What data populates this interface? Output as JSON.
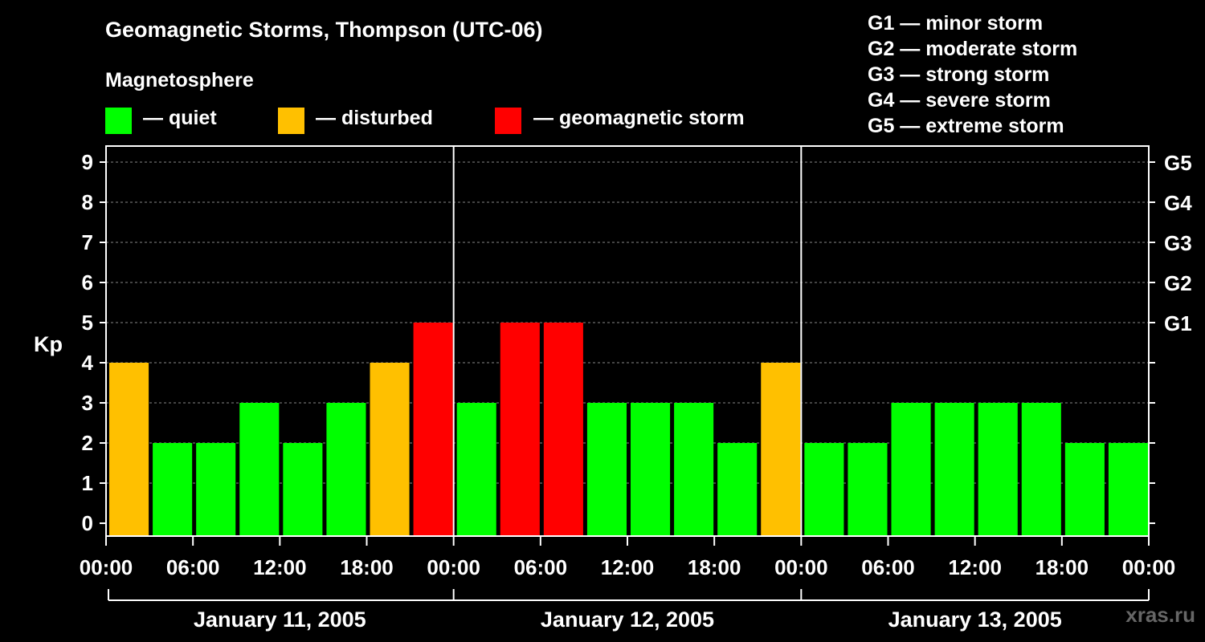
{
  "colors": {
    "quiet": "#00ff00",
    "disturbed": "#ffc000",
    "storm": "#ff0000"
  },
  "legend": [
    {
      "label": "— quiet",
      "color": "#00ff00"
    },
    {
      "label": "— disturbed",
      "color": "#ffc000"
    },
    {
      "label": "— geomagnetic storm",
      "color": "#ff0000"
    }
  ],
  "g_scale": [
    "G1 — minor storm",
    "G2 — moderate storm",
    "G3 — strong storm",
    "G4 — severe storm",
    "G5 — extreme storm"
  ],
  "watermark": "xras.ru",
  "chart_data": {
    "type": "bar",
    "title": "Geomagnetic Storms, Thompson (UTC-06)",
    "subtitle": "Magnetosphere",
    "ylabel": "Kp",
    "ylim": [
      0,
      9
    ],
    "yticks": [
      0,
      1,
      2,
      3,
      4,
      5,
      6,
      7,
      8,
      9
    ],
    "right_axis_labels": [
      {
        "kp": 5,
        "label": "G1"
      },
      {
        "kp": 6,
        "label": "G2"
      },
      {
        "kp": 7,
        "label": "G3"
      },
      {
        "kp": 8,
        "label": "G4"
      },
      {
        "kp": 9,
        "label": "G5"
      }
    ],
    "x_tick_labels": [
      "00:00",
      "06:00",
      "12:00",
      "18:00",
      "00:00",
      "06:00",
      "12:00",
      "18:00",
      "00:00",
      "06:00",
      "12:00",
      "18:00",
      "00:00"
    ],
    "days": [
      "January 11, 2005",
      "January 12, 2005",
      "January 13, 2005"
    ],
    "interval_hours": 3,
    "values": [
      4,
      2,
      2,
      3,
      2,
      3,
      4,
      5,
      3,
      5,
      5,
      3,
      3,
      3,
      2,
      4,
      2,
      2,
      3,
      3,
      3,
      3,
      2,
      2
    ],
    "grid": true,
    "legend_position": "top"
  }
}
